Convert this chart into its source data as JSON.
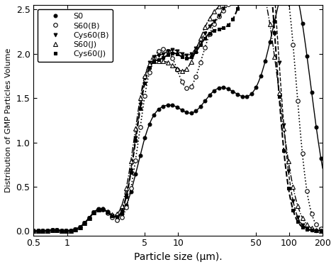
{
  "xlabel": "Particle size (μm).",
  "ylabel": "Distribution of GMP Particles Volume",
  "xlim": [
    0.5,
    200
  ],
  "ylim": [
    -0.05,
    2.55
  ],
  "yticks": [
    0.0,
    0.5,
    1.0,
    1.5,
    2.0,
    2.5
  ],
  "xticks": [
    0.5,
    1,
    5,
    10,
    50,
    100,
    200
  ],
  "xtick_labels": [
    "0.5",
    "1",
    "5",
    "10",
    "50",
    "100",
    "200"
  ],
  "series": {
    "S0": {
      "linestyle": "-",
      "marker": "o",
      "markerfacecolor": "black",
      "markeredgecolor": "black",
      "color": "black",
      "markersize": 3.5,
      "linewidth": 1.0
    },
    "S60(B)": {
      "linestyle": ":",
      "marker": "o",
      "markerfacecolor": "white",
      "markeredgecolor": "black",
      "color": "black",
      "markersize": 4.0,
      "linewidth": 1.2
    },
    "Cys60(B)": {
      "linestyle": "--",
      "marker": "v",
      "markerfacecolor": "black",
      "markeredgecolor": "black",
      "color": "black",
      "markersize": 3.5,
      "linewidth": 1.0
    },
    "S60(J)": {
      "linestyle": "-.",
      "marker": "^",
      "markerfacecolor": "white",
      "markeredgecolor": "black",
      "color": "black",
      "markersize": 4.0,
      "linewidth": 1.0
    },
    "Cys60(J)": {
      "linestyle": "--",
      "marker": "s",
      "markerfacecolor": "black",
      "markeredgecolor": "black",
      "color": "black",
      "markersize": 3.5,
      "linewidth": 1.5
    }
  },
  "background_color": "white",
  "legend_loc": "upper left",
  "legend_fontsize": 8
}
